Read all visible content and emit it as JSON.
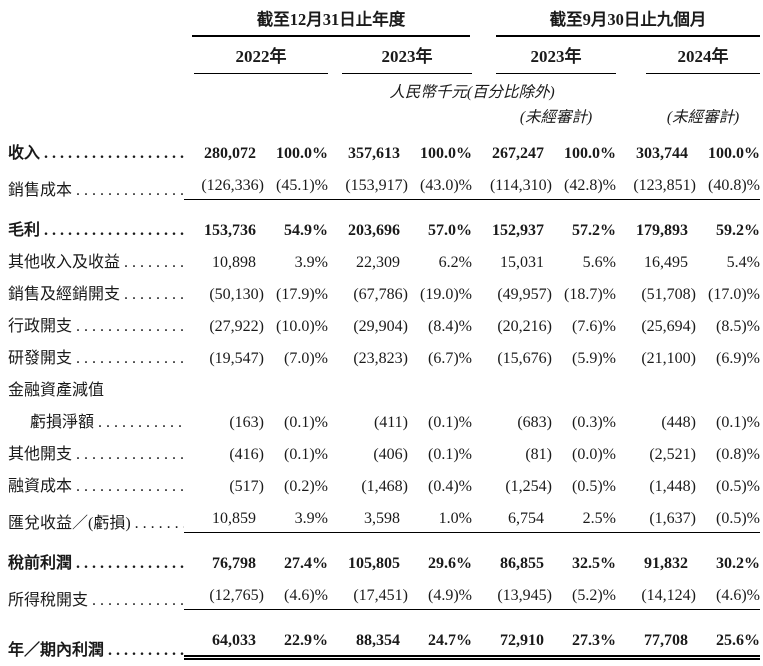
{
  "table": {
    "groups": [
      {
        "title": "截至12月31日止年度",
        "years": [
          "2022年",
          "2023年"
        ]
      },
      {
        "title": "截至9月30日止九個月",
        "years": [
          "2023年",
          "2024年"
        ]
      }
    ],
    "unit_note": "人民幣千元(百分比除外)",
    "unaudited_note_1": "(未經審計)",
    "unaudited_note_2": "(未經審計)",
    "rows": [
      {
        "label": "收入",
        "bold": true,
        "first": true,
        "values": [
          "280,072",
          "100.0%",
          "357,613",
          "100.0%",
          "267,247",
          "100.0%",
          "303,744",
          "100.0%"
        ]
      },
      {
        "label": "銷售成本",
        "underline": "single",
        "values": [
          "(126,336)",
          "(45.1)%",
          "(153,917)",
          "(43.0)%",
          "(114,310)",
          "(42.8)%",
          "(123,851)",
          "(40.8)%"
        ]
      },
      {
        "label": "毛利",
        "bold": true,
        "gap_top": true,
        "values": [
          "153,736",
          "54.9%",
          "203,696",
          "57.0%",
          "152,937",
          "57.2%",
          "179,893",
          "59.2%"
        ]
      },
      {
        "label": "其他收入及收益",
        "values": [
          "10,898",
          "3.9%",
          "22,309",
          "6.2%",
          "15,031",
          "5.6%",
          "16,495",
          "5.4%"
        ]
      },
      {
        "label": "銷售及經銷開支",
        "values": [
          "(50,130)",
          "(17.9)%",
          "(67,786)",
          "(19.0)%",
          "(49,957)",
          "(18.7)%",
          "(51,708)",
          "(17.0)%"
        ]
      },
      {
        "label": "行政開支",
        "values": [
          "(27,922)",
          "(10.0)%",
          "(29,904)",
          "(8.4)%",
          "(20,216)",
          "(7.6)%",
          "(25,694)",
          "(8.5)%"
        ]
      },
      {
        "label": "研發開支",
        "values": [
          "(19,547)",
          "(7.0)%",
          "(23,823)",
          "(6.7)%",
          "(15,676)",
          "(5.9)%",
          "(21,100)",
          "(6.9)%"
        ]
      },
      {
        "label": "金融資產減值",
        "no_dots": true,
        "values": [
          "",
          "",
          "",
          "",
          "",
          "",
          "",
          ""
        ]
      },
      {
        "label": "虧損淨額",
        "indent": true,
        "values": [
          "(163)",
          "(0.1)%",
          "(411)",
          "(0.1)%",
          "(683)",
          "(0.3)%",
          "(448)",
          "(0.1)%"
        ]
      },
      {
        "label": "其他開支",
        "values": [
          "(416)",
          "(0.1)%",
          "(406)",
          "(0.1)%",
          "(81)",
          "(0.0)%",
          "(2,521)",
          "(0.8)%"
        ]
      },
      {
        "label": "融資成本",
        "values": [
          "(517)",
          "(0.2)%",
          "(1,468)",
          "(0.4)%",
          "(1,254)",
          "(0.5)%",
          "(1,448)",
          "(0.5)%"
        ]
      },
      {
        "label": "匯兌收益／(虧損)",
        "underline": "single",
        "values": [
          "10,859",
          "3.9%",
          "3,598",
          "1.0%",
          "6,754",
          "2.5%",
          "(1,637)",
          "(0.5)%"
        ]
      },
      {
        "label": "稅前利潤",
        "bold": true,
        "gap_top": true,
        "values": [
          "76,798",
          "27.4%",
          "105,805",
          "29.6%",
          "86,855",
          "32.5%",
          "91,832",
          "30.2%"
        ]
      },
      {
        "label": "所得稅開支",
        "underline": "single",
        "values": [
          "(12,765)",
          "(4.6)%",
          "(17,451)",
          "(4.9)%",
          "(13,945)",
          "(5.2)%",
          "(14,124)",
          "(4.6)%"
        ]
      },
      {
        "label": "年／期內利潤",
        "bold": true,
        "gap_top": true,
        "underline": "double",
        "values": [
          "64,033",
          "22.9%",
          "88,354",
          "24.7%",
          "72,910",
          "27.3%",
          "77,708",
          "25.6%"
        ]
      }
    ]
  }
}
